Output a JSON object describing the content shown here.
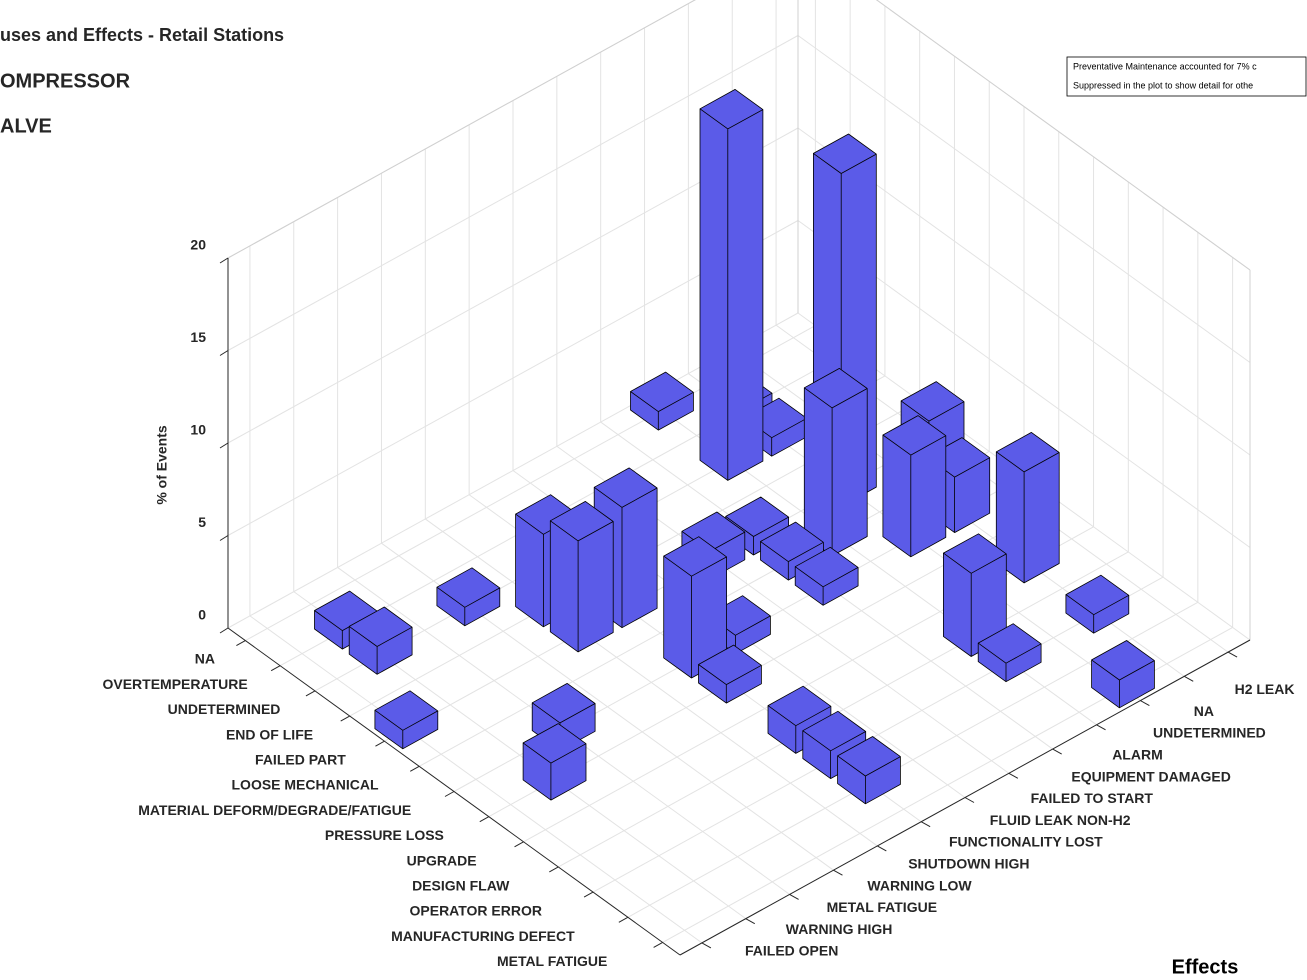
{
  "chart_data": {
    "type": "bar3",
    "title": "uses and Effects - Retail Stations",
    "subtitle": [
      "OMPRESSOR",
      "ALVE"
    ],
    "annotation": [
      "Preventative Maintenance accounted for 7% c",
      "Suppressed in the plot to show detail for othe"
    ],
    "y_label": "% of Events",
    "effects_label": "Effects",
    "causes": [
      "NA",
      "OVERTEMPERATURE",
      "UNDETERMINED",
      "END OF LIFE",
      "FAILED PART",
      "LOOSE MECHANICAL",
      "MATERIAL DEFORM/DEGRADE/FATIGUE",
      "PRESSURE LOSS",
      "UPGRADE",
      "DESIGN FLAW",
      "OPERATOR ERROR",
      "MANUFACTURING DEFECT",
      "METAL FATIGUE"
    ],
    "effects": [
      "FAILED OPEN",
      "WARNING HIGH",
      "METAL FATIGUE",
      "WARNING LOW",
      "SHUTDOWN HIGH",
      "FUNCTIONALITY LOST",
      "FLUID LEAK NON-H2",
      "FAILED TO START",
      "EQUIPMENT DAMAGED",
      "ALARM",
      "UNDETERMINED",
      "NA",
      "H2 LEAK"
    ],
    "values": [
      [
        null,
        null,
        null,
        null,
        null,
        null,
        null,
        null,
        null,
        1,
        null,
        null,
        null
      ],
      [
        null,
        1,
        null,
        null,
        null,
        null,
        null,
        null,
        null,
        null,
        1,
        null,
        null
      ],
      [
        null,
        1.5,
        null,
        1,
        null,
        null,
        null,
        null,
        null,
        19,
        1,
        null,
        null
      ],
      [
        null,
        null,
        null,
        null,
        5,
        null,
        null,
        null,
        null,
        null,
        null,
        null,
        null
      ],
      [
        1,
        null,
        null,
        null,
        6,
        6.5,
        null,
        1.5,
        1,
        null,
        18,
        null,
        2
      ],
      [
        null,
        null,
        null,
        null,
        null,
        null,
        null,
        null,
        1,
        8,
        null,
        null,
        null
      ],
      [
        null,
        null,
        1.5,
        null,
        null,
        5.5,
        1,
        null,
        1,
        null,
        5.5,
        3,
        null
      ],
      [
        null,
        2,
        null,
        null,
        null,
        1,
        null,
        null,
        null,
        null,
        null,
        null,
        null
      ],
      [
        null,
        null,
        null,
        null,
        null,
        null,
        null,
        null,
        null,
        null,
        null,
        6,
        null
      ],
      [
        null,
        null,
        null,
        null,
        null,
        1.5,
        null,
        null,
        null,
        4.5,
        null,
        null,
        null
      ],
      [
        null,
        null,
        null,
        null,
        null,
        1.5,
        null,
        null,
        null,
        1,
        null,
        1,
        null
      ],
      [
        null,
        null,
        null,
        null,
        null,
        1.5,
        null,
        null,
        null,
        null,
        null,
        null,
        null
      ],
      [
        null,
        null,
        null,
        null,
        null,
        null,
        null,
        null,
        null,
        null,
        1.5,
        null,
        null
      ]
    ],
    "color": "#5b5be8",
    "ylim": [
      0,
      20
    ],
    "yticks": [
      0,
      5,
      10,
      15,
      20
    ],
    "grid": true
  }
}
